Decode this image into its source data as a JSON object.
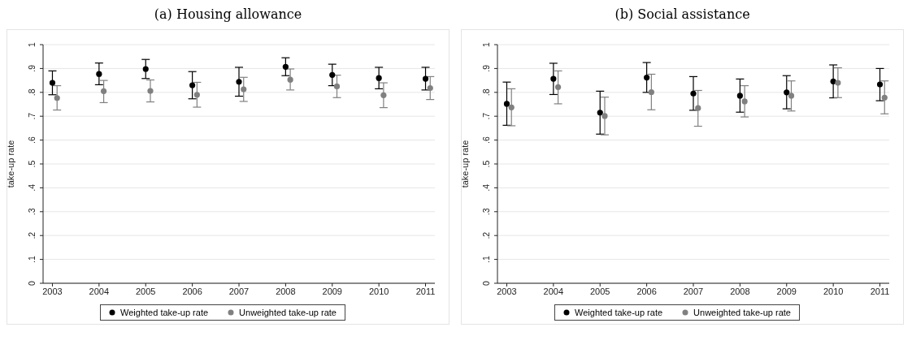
{
  "chart_data": [
    {
      "type": "scatter",
      "title": "(a) Housing allowance",
      "ylabel": "take-up rate",
      "xlim": [
        2002.8,
        2011.2
      ],
      "xticks": [
        2003,
        2004,
        2005,
        2006,
        2007,
        2008,
        2009,
        2010,
        2011
      ],
      "ylim": [
        0,
        1
      ],
      "yticks": [
        {
          "value": 0,
          "label": "0"
        },
        {
          "value": 0.1,
          "label": ".1"
        },
        {
          "value": 0.2,
          "label": ".2"
        },
        {
          "value": 0.3,
          "label": ".3"
        },
        {
          "value": 0.4,
          "label": ".4"
        },
        {
          "value": 0.5,
          "label": ".5"
        },
        {
          "value": 0.6,
          "label": ".6"
        },
        {
          "value": 0.7,
          "label": ".7"
        },
        {
          "value": 0.8,
          "label": ".8"
        },
        {
          "value": 0.9,
          "label": ".9"
        },
        {
          "value": 1,
          "label": "1"
        }
      ],
      "grid": "y",
      "legend": "bottom",
      "marker": "circle",
      "series": [
        {
          "name": "Weighted take-up rate",
          "color": "#000000",
          "x": [
            2003,
            2004,
            2005,
            2006,
            2007,
            2008,
            2009,
            2010,
            2011
          ],
          "values": [
            0.84,
            0.877,
            0.898,
            0.83,
            0.844,
            0.907,
            0.873,
            0.86,
            0.857
          ],
          "errors": [
            [
              0.79,
              0.89
            ],
            [
              0.832,
              0.923
            ],
            [
              0.858,
              0.938
            ],
            [
              0.773,
              0.887
            ],
            [
              0.784,
              0.905
            ],
            [
              0.87,
              0.945
            ],
            [
              0.828,
              0.918
            ],
            [
              0.815,
              0.905
            ],
            [
              0.81,
              0.905
            ]
          ]
        },
        {
          "name": "Unweighted take-up rate",
          "color": "#808080",
          "x": [
            2003.1,
            2004.1,
            2005.1,
            2006.1,
            2007.1,
            2008.1,
            2009.1,
            2010.1,
            2011.1
          ],
          "values": [
            0.776,
            0.805,
            0.806,
            0.79,
            0.813,
            0.853,
            0.825,
            0.788,
            0.818
          ],
          "errors": [
            [
              0.726,
              0.828
            ],
            [
              0.757,
              0.85
            ],
            [
              0.76,
              0.852
            ],
            [
              0.738,
              0.842
            ],
            [
              0.762,
              0.863
            ],
            [
              0.81,
              0.898
            ],
            [
              0.778,
              0.872
            ],
            [
              0.736,
              0.84
            ],
            [
              0.77,
              0.866
            ]
          ]
        }
      ]
    },
    {
      "type": "scatter",
      "title": "(b) Social assistance",
      "ylabel": "take-up rate",
      "xlim": [
        2002.8,
        2011.2
      ],
      "xticks": [
        2003,
        2004,
        2005,
        2006,
        2007,
        2008,
        2009,
        2010,
        2011
      ],
      "ylim": [
        0,
        1
      ],
      "yticks": [
        {
          "value": 0,
          "label": "0"
        },
        {
          "value": 0.1,
          "label": ".1"
        },
        {
          "value": 0.2,
          "label": ".2"
        },
        {
          "value": 0.3,
          "label": ".3"
        },
        {
          "value": 0.4,
          "label": ".4"
        },
        {
          "value": 0.5,
          "label": ".5"
        },
        {
          "value": 0.6,
          "label": ".6"
        },
        {
          "value": 0.7,
          "label": ".7"
        },
        {
          "value": 0.8,
          "label": ".8"
        },
        {
          "value": 0.9,
          "label": ".9"
        },
        {
          "value": 1,
          "label": "1"
        }
      ],
      "grid": "y",
      "legend": "bottom",
      "marker": "circle",
      "series": [
        {
          "name": "Weighted take-up rate",
          "color": "#000000",
          "x": [
            2003,
            2004,
            2005,
            2006,
            2007,
            2008,
            2009,
            2010,
            2011
          ],
          "values": [
            0.752,
            0.857,
            0.715,
            0.862,
            0.795,
            0.786,
            0.8,
            0.846,
            0.833
          ],
          "errors": [
            [
              0.662,
              0.843
            ],
            [
              0.791,
              0.922
            ],
            [
              0.625,
              0.805
            ],
            [
              0.8,
              0.925
            ],
            [
              0.725,
              0.866
            ],
            [
              0.717,
              0.856
            ],
            [
              0.731,
              0.87
            ],
            [
              0.777,
              0.915
            ],
            [
              0.765,
              0.9
            ]
          ]
        },
        {
          "name": "Unweighted take-up rate",
          "color": "#808080",
          "x": [
            2003.1,
            2004.1,
            2005.1,
            2006.1,
            2007.1,
            2008.1,
            2009.1,
            2010.1,
            2011.1
          ],
          "values": [
            0.737,
            0.822,
            0.701,
            0.801,
            0.734,
            0.762,
            0.786,
            0.84,
            0.778
          ],
          "errors": [
            [
              0.66,
              0.815
            ],
            [
              0.752,
              0.89
            ],
            [
              0.622,
              0.78
            ],
            [
              0.727,
              0.876
            ],
            [
              0.658,
              0.808
            ],
            [
              0.697,
              0.828
            ],
            [
              0.722,
              0.848
            ],
            [
              0.778,
              0.903
            ],
            [
              0.71,
              0.848
            ]
          ]
        }
      ]
    }
  ]
}
